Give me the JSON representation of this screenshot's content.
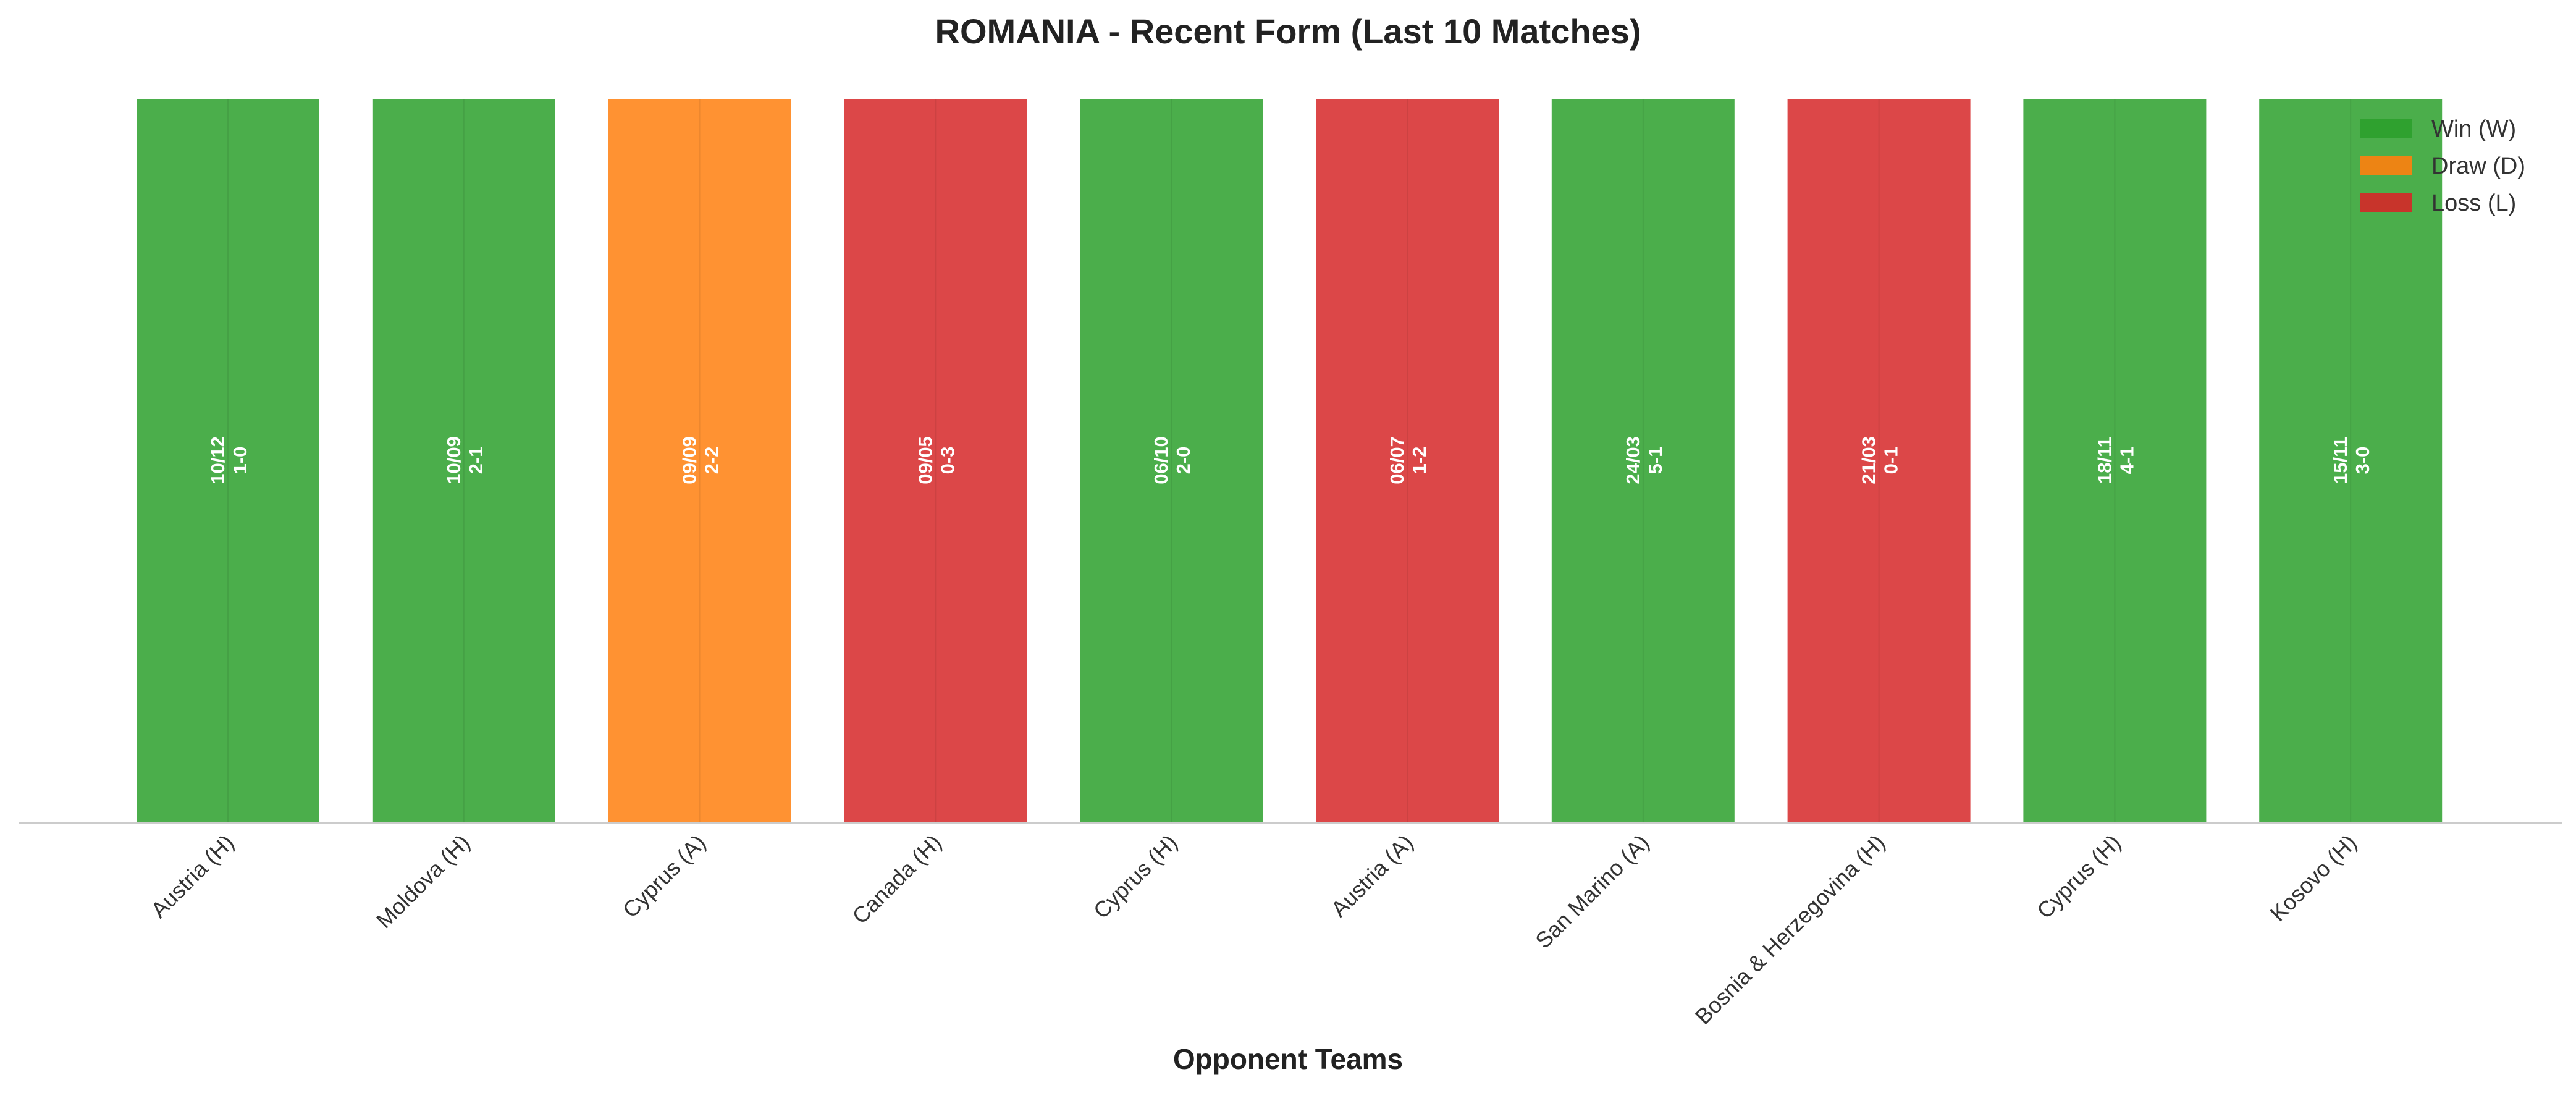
{
  "chart_data": {
    "type": "bar",
    "title": "ROMANIA - Recent Form (Last 10 Matches)",
    "xlabel": "Opponent Teams",
    "ylabel": "",
    "ylim": [
      0,
      1
    ],
    "grid": false,
    "legend_placement": "top-right",
    "categories": [
      "Austria (H)",
      "Moldova (H)",
      "Cyprus (A)",
      "Canada (H)",
      "Cyprus (H)",
      "Austria (A)",
      "San Marino (A)",
      "Bosnia & Herzegovina (H)",
      "Cyprus (H)",
      "Kosovo (H)"
    ],
    "values": [
      1,
      1,
      1,
      1,
      1,
      1,
      1,
      1,
      1,
      1
    ],
    "results": [
      "W",
      "W",
      "D",
      "L",
      "W",
      "L",
      "W",
      "L",
      "W",
      "W"
    ],
    "dates": [
      "10/12",
      "10/09",
      "09/09",
      "09/05",
      "06/10",
      "06/07",
      "24/03",
      "21/03",
      "18/11",
      "15/11"
    ],
    "scores": [
      "1-0",
      "2-1",
      "2-2",
      "0-3",
      "2-0",
      "1-2",
      "5-1",
      "0-1",
      "4-1",
      "3-0"
    ],
    "legend": [
      {
        "key": "W",
        "label": "Win (W)",
        "color": "#2ca02c"
      },
      {
        "key": "D",
        "label": "Draw (D)",
        "color": "#ff7f0e"
      },
      {
        "key": "L",
        "label": "Loss (L)",
        "color": "#d62728"
      }
    ]
  }
}
